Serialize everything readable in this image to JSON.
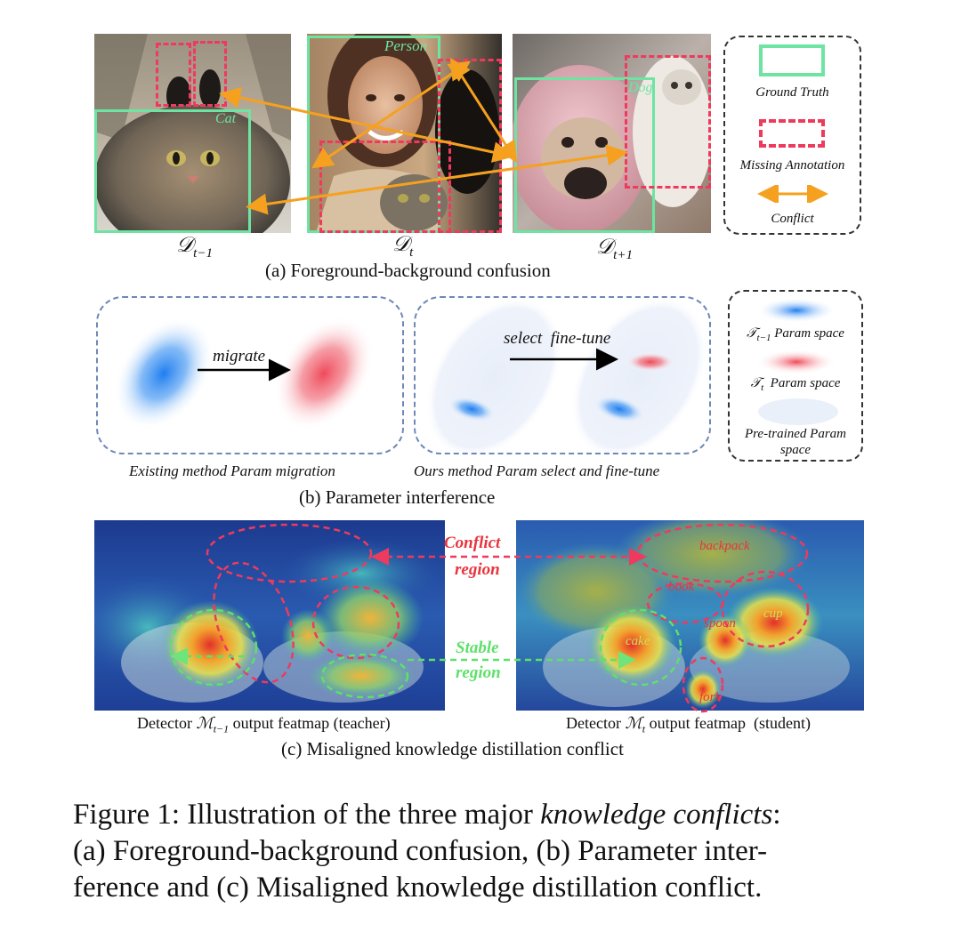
{
  "panel_a": {
    "labels": {
      "person": "Person",
      "cat": "Cat",
      "dog": "Dog"
    },
    "domains": [
      {
        "main": "𝒟",
        "sub": "t−1"
      },
      {
        "main": "𝒟",
        "sub": "t"
      },
      {
        "main": "𝒟",
        "sub": "t+1"
      }
    ],
    "subcaption": "(a) Foreground-background confusion",
    "legend": {
      "ground_truth": "Ground Truth",
      "missing": "Missing Annotation",
      "conflict": "Conflict"
    },
    "colors": {
      "ground_truth": "#6ee4a2",
      "missing": "#ee3a5d",
      "conflict": "#f5a11f"
    }
  },
  "panel_b": {
    "left_arrow": "migrate",
    "right_arrow": "select  fine-tune",
    "left_caption": "Existing method Param migration",
    "right_caption": "Ours method Param select and fine-tune",
    "subcaption": "(b) Parameter interference",
    "legend": {
      "prev_main": "𝒯",
      "prev_sub": "t−1",
      "prev_rest": " Param space",
      "cur_main": "𝒯",
      "cur_sub": "t",
      "cur_rest": "  Param space",
      "pre_1": "Pre-trained Param",
      "pre_2": "space"
    }
  },
  "panel_c": {
    "conflict_1": "Conflict",
    "conflict_2": "region",
    "stable_1": "Stable",
    "stable_2": "region",
    "tags": {
      "backpack": "backpack",
      "book": "book",
      "cup": "cup",
      "spoon": "spoon",
      "cake": "cake",
      "fork": "fork"
    },
    "teacher_pre": "Detector ",
    "teacher_main": "ℳ",
    "teacher_sub": "t−1",
    "teacher_post": " output featmap (teacher)",
    "student_pre": "Detector ",
    "student_main": "ℳ",
    "student_sub": "t",
    "student_post": " output featmap  (student)",
    "subcaption": "(c) Misaligned knowledge distillation conflict"
  },
  "figure_caption": {
    "line1_a": "Figure 1: Illustration of the three major ",
    "line1_em": "knowledge conflicts",
    "line1_b": ":",
    "line2": "(a) Foreground-background confusion, (b) Parameter inter-",
    "line3": "ference and (c) Misaligned knowledge distillation conflict."
  }
}
